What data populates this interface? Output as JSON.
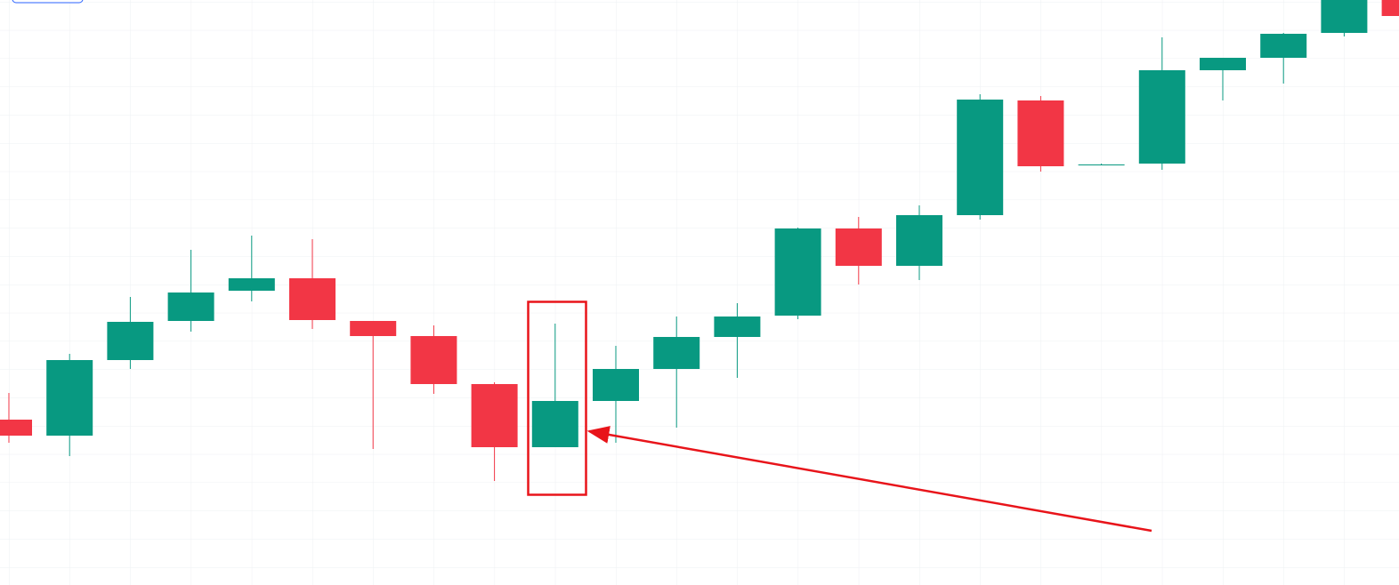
{
  "chart_data": {
    "type": "candlestick",
    "up_color": "#089981",
    "down_color": "#f23645",
    "ylim": [
      0,
      658
    ],
    "open": [
      186,
      168,
      253,
      297,
      331,
      345,
      297,
      280,
      226,
      155,
      207,
      243,
      279,
      303,
      401,
      359,
      416,
      545,
      473,
      474,
      579,
      593,
      621,
      658
    ],
    "high": [
      216,
      260,
      324,
      377,
      393,
      389,
      297,
      292,
      228,
      294,
      269,
      302,
      317,
      402,
      414,
      427,
      552,
      550,
      474,
      616,
      593,
      621,
      658,
      658
    ],
    "low": [
      160,
      145,
      243,
      285,
      319,
      288,
      153,
      215,
      117,
      155,
      160,
      177,
      233,
      299,
      338,
      343,
      411,
      465,
      472,
      467,
      545,
      564,
      617,
      640
    ],
    "close": [
      168,
      253,
      296,
      329,
      345,
      298,
      280,
      226,
      155,
      207,
      243,
      279,
      302,
      401,
      359,
      416,
      546,
      471,
      473,
      579,
      593,
      620,
      658,
      640
    ]
  }
}
